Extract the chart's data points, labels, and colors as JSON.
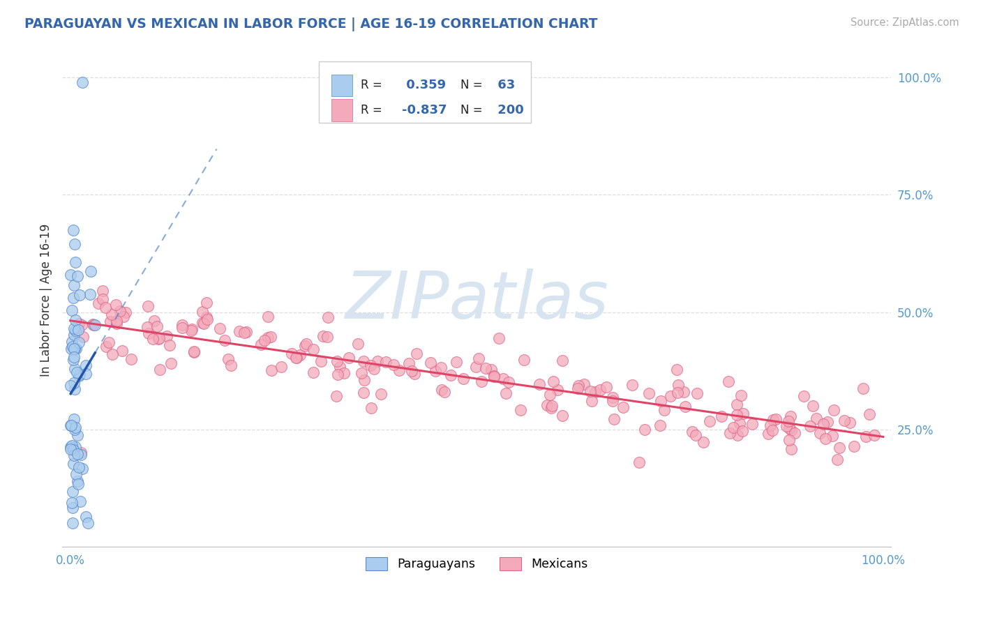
{
  "title": "PARAGUAYAN VS MEXICAN IN LABOR FORCE | AGE 16-19 CORRELATION CHART",
  "source_text": "Source: ZipAtlas.com",
  "ylabel": "In Labor Force | Age 16-19",
  "xlim": [
    0,
    100
  ],
  "ylim": [
    0,
    100
  ],
  "blue_R": 0.359,
  "blue_N": 63,
  "pink_R": -0.837,
  "pink_N": 200,
  "blue_color": "#aaccee",
  "pink_color": "#f4aabb",
  "blue_edge_color": "#5588cc",
  "pink_edge_color": "#dd6688",
  "blue_line_color": "#2255aa",
  "pink_line_color": "#dd4466",
  "watermark_color": "#d8e4f0",
  "legend_label_blue": "Paraguayans",
  "legend_label_pink": "Mexicans",
  "title_color": "#3366aa",
  "axis_tick_color": "#5599cc",
  "grid_color": "#dddddd",
  "source_color": "#aaaaaa"
}
